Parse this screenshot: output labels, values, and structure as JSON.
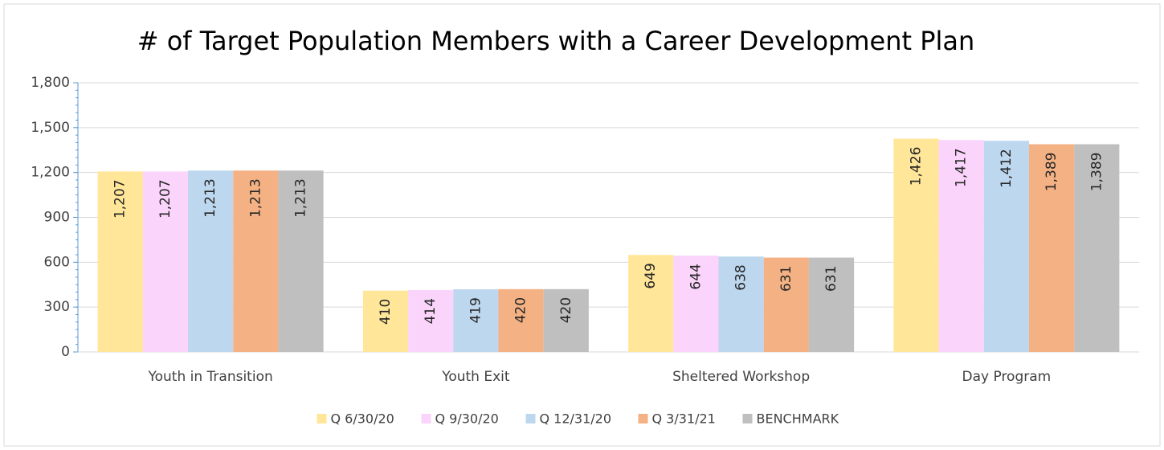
{
  "chart_data": {
    "type": "bar",
    "title": "# of Target Population Members with a Career Development Plan",
    "categories": [
      "Youth in Transition",
      "Youth Exit",
      "Sheltered Workshop",
      "Day Program"
    ],
    "series": [
      {
        "name": "Q 6/30/20",
        "color": "#FFE699",
        "values": [
          1207,
          410,
          649,
          1426
        ],
        "value_labels": [
          "1,207",
          "410",
          "649",
          "1,426"
        ]
      },
      {
        "name": "Q 9/30/20",
        "color": "#FAD4FA",
        "values": [
          1207,
          414,
          644,
          1417
        ],
        "value_labels": [
          "1,207",
          "414",
          "644",
          "1,417"
        ]
      },
      {
        "name": "Q 12/31/20",
        "color": "#BDD7EE",
        "values": [
          1213,
          419,
          638,
          1412
        ],
        "value_labels": [
          "1,213",
          "419",
          "638",
          "1,412"
        ]
      },
      {
        "name": "Q 3/31/21",
        "color": "#F4B183",
        "values": [
          1213,
          420,
          631,
          1389
        ],
        "value_labels": [
          "1,213",
          "420",
          "631",
          "1,389"
        ]
      },
      {
        "name": "BENCHMARK",
        "color": "#BFBFBF",
        "values": [
          1213,
          420,
          631,
          1389
        ],
        "value_labels": [
          "1,213",
          "420",
          "631",
          "1,389"
        ]
      }
    ],
    "ylim": [
      0,
      1800
    ],
    "yticks": [
      0,
      300,
      600,
      900,
      {
        "value": 1200,
        "label": "1,200"
      },
      {
        "value": 1500,
        "label": "1,500"
      },
      {
        "value": 1800,
        "label": "1,800"
      }
    ],
    "grid": true,
    "legend": "bottom"
  }
}
